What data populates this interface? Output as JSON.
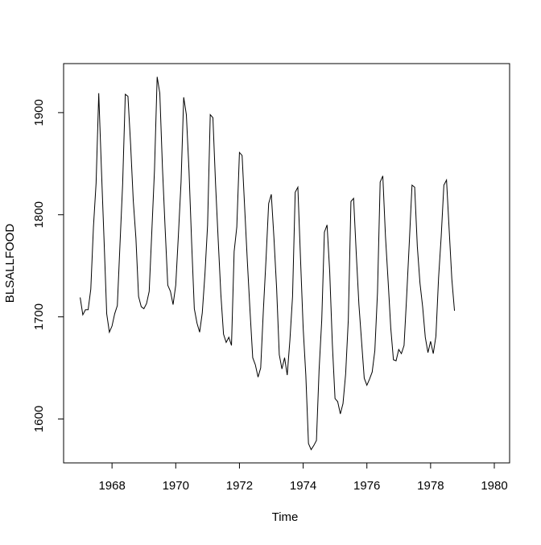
{
  "chart_data": {
    "type": "line",
    "title": "",
    "xlabel": "Time",
    "ylabel": "BLSALLFOOD",
    "xlim": [
      1966.48,
      1980.48
    ],
    "ylim": [
      1557,
      1948
    ],
    "x_ticks": [
      1968,
      1970,
      1972,
      1974,
      1976,
      1978,
      1980
    ],
    "y_ticks": [
      1600,
      1700,
      1800,
      1900
    ],
    "x_start": 1967.0,
    "x_step": 0.0833333,
    "grid": false,
    "legend": "none",
    "line_color": "#000000",
    "series": [
      {
        "values": [
          1719,
          1702,
          1707,
          1707,
          1727,
          1788,
          1831,
          1919,
          1845,
          1775,
          1703,
          1685,
          1691,
          1703,
          1711,
          1771,
          1830,
          1918,
          1916,
          1869,
          1814,
          1777,
          1720,
          1710,
          1708,
          1713,
          1725,
          1784,
          1844,
          1935,
          1919,
          1846,
          1787,
          1731,
          1725,
          1712,
          1731,
          1780,
          1832,
          1915,
          1898,
          1843,
          1772,
          1708,
          1694,
          1685,
          1704,
          1742,
          1790,
          1898,
          1895,
          1830,
          1775,
          1722,
          1683,
          1675,
          1680,
          1672,
          1764,
          1788,
          1861,
          1858,
          1805,
          1753,
          1705,
          1660,
          1653,
          1641,
          1650,
          1706,
          1756,
          1811,
          1820,
          1777,
          1728,
          1663,
          1649,
          1660,
          1643,
          1677,
          1720,
          1822,
          1827,
          1757,
          1689,
          1643,
          1576,
          1570,
          1574,
          1579,
          1648,
          1697,
          1783,
          1790,
          1744,
          1673,
          1620,
          1617,
          1605,
          1615,
          1644,
          1697,
          1813,
          1816,
          1762,
          1712,
          1676,
          1640,
          1633,
          1639,
          1646,
          1667,
          1724,
          1832,
          1838,
          1779,
          1735,
          1689,
          1658,
          1657,
          1668,
          1664,
          1672,
          1721,
          1774,
          1829,
          1827,
          1769,
          1733,
          1710,
          1680,
          1665,
          1676,
          1664,
          1681,
          1738,
          1779,
          1829,
          1834,
          1785,
          1737,
          1706
        ]
      }
    ]
  }
}
